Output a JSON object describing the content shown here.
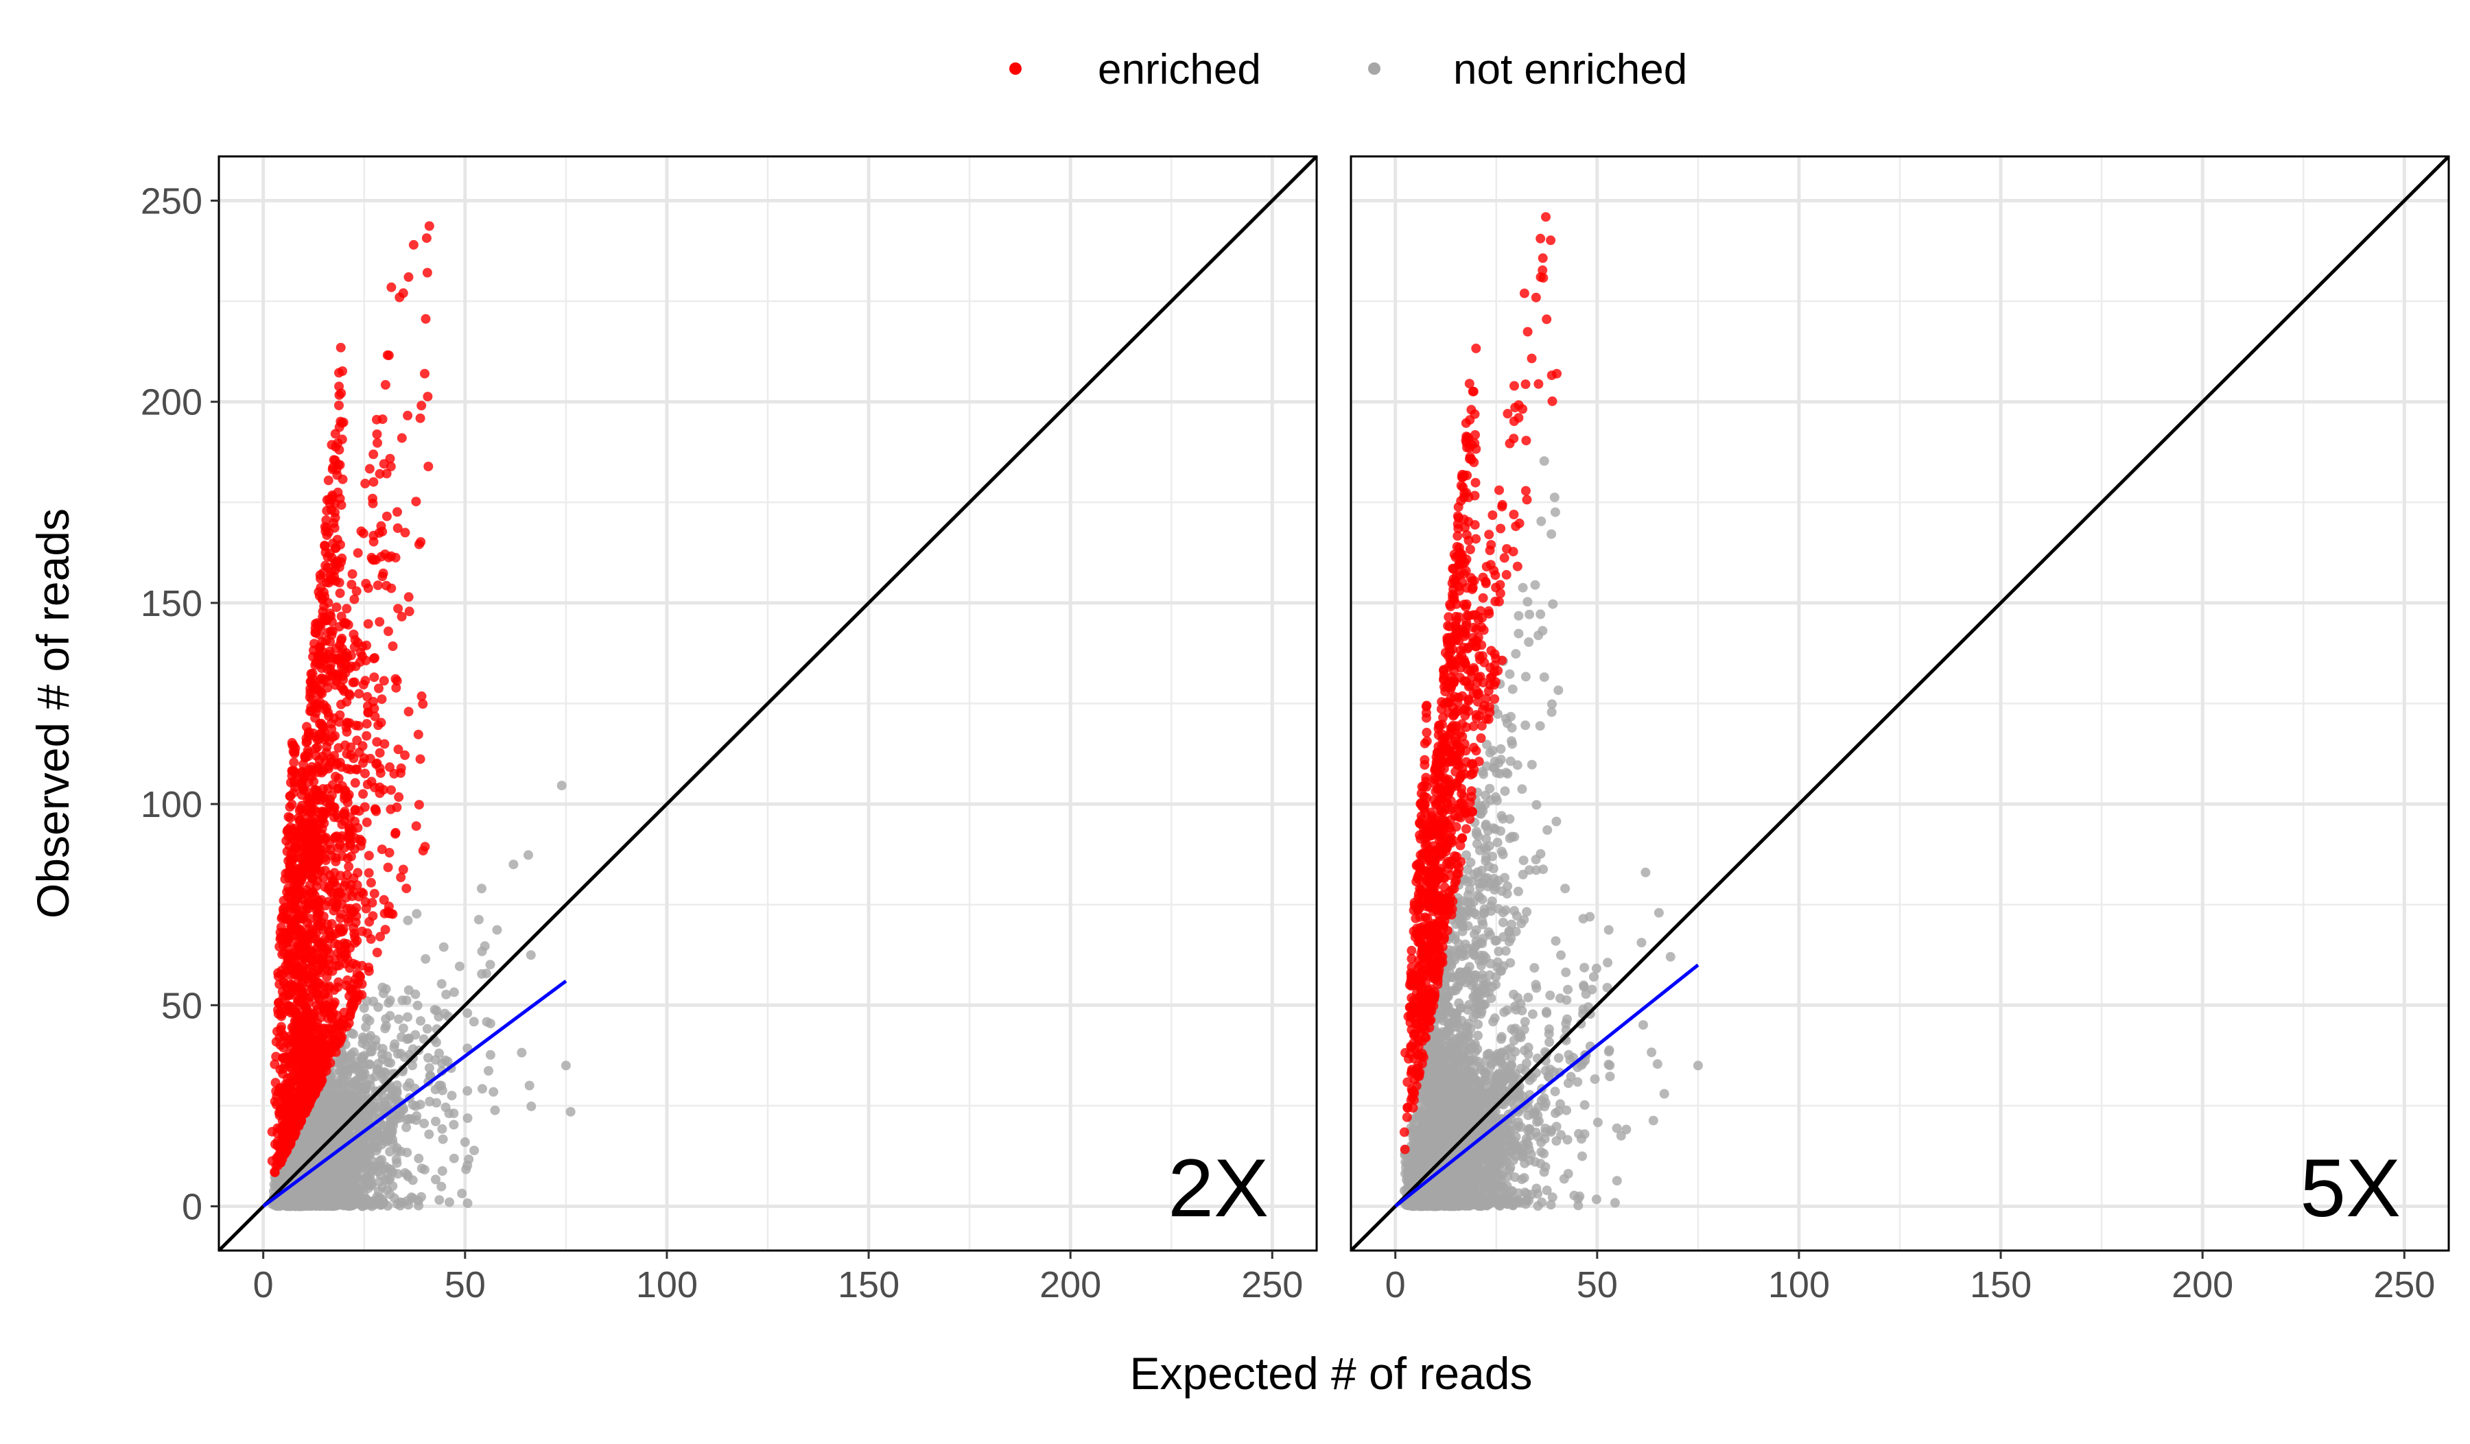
{
  "chart_data": {
    "type": "scatter",
    "xlabel": "Expected # of reads",
    "ylabel": "Observed # of reads",
    "xlim": [
      -11,
      261
    ],
    "ylim": [
      -11,
      261
    ],
    "x_ticks": [
      0,
      50,
      100,
      150,
      200,
      250
    ],
    "y_ticks": [
      0,
      50,
      100,
      150,
      200,
      250
    ],
    "grid": true,
    "legend": {
      "position": "top",
      "entries": [
        {
          "key": "enriched",
          "label": "enriched",
          "color": "#ff0000"
        },
        {
          "key": "not_enriched",
          "label": "not enriched",
          "color": "#a6a6a6"
        }
      ]
    },
    "reference_line": {
      "description": "y = x",
      "color": "#000000"
    },
    "panels": [
      {
        "label": "2X",
        "fit_line": {
          "x": [
            0,
            75
          ],
          "y": [
            0,
            56
          ],
          "color": "#0000ff"
        },
        "enriched_region": {
          "points": 1900,
          "x_range": [
            0,
            40
          ],
          "y_range": [
            2,
            248
          ],
          "rule": "observed > 2 x expected (roughly)"
        },
        "not_enriched_region": {
          "points": 2600,
          "x_range": [
            0,
            77
          ],
          "y_range": [
            0,
            87
          ],
          "rule": "observed <= 2 x expected (roughly)"
        },
        "notable_points": [
          {
            "x": 40,
            "y": 207,
            "group": "enriched"
          },
          {
            "x": 36,
            "y": 231,
            "group": "enriched"
          },
          {
            "x": 62,
            "y": 85,
            "group": "not_enriched"
          },
          {
            "x": 75,
            "y": 35,
            "group": "not_enriched"
          }
        ]
      },
      {
        "label": "5X",
        "fit_line": {
          "x": [
            0,
            75
          ],
          "y": [
            0,
            60
          ],
          "color": "#0000ff"
        },
        "enriched_region": {
          "points": 1500,
          "x_range": [
            0,
            40
          ],
          "y_range": [
            5,
            248
          ],
          "rule": "observed > 5 x expected (roughly)"
        },
        "not_enriched_region": {
          "points": 3200,
          "x_range": [
            0,
            77
          ],
          "y_range": [
            0,
            142
          ],
          "rule": "observed <= 5 x expected (roughly)"
        },
        "notable_points": [
          {
            "x": 40,
            "y": 207,
            "group": "enriched"
          },
          {
            "x": 36,
            "y": 231,
            "group": "enriched"
          },
          {
            "x": 62,
            "y": 83,
            "group": "not_enriched"
          },
          {
            "x": 75,
            "y": 35,
            "group": "not_enriched"
          }
        ]
      }
    ]
  }
}
